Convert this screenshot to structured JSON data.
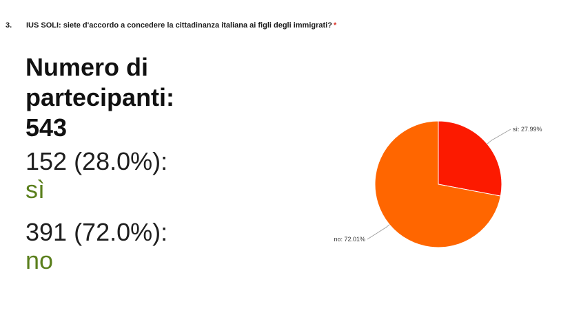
{
  "question": {
    "number": "3.",
    "text": "IUS SOLI: siete d'accordo a concedere la cittadinanza italiana ai figli degli immigrati?",
    "required_mark": "*"
  },
  "summary": {
    "participants_line1": "Numero di",
    "participants_line2": "partecipanti:",
    "participants_value": "543",
    "answers": [
      {
        "count_text": "152 (28.0%):",
        "label": "sì"
      },
      {
        "count_text": "391 (72.0%):",
        "label": "no"
      }
    ]
  },
  "colors": {
    "si": "#fc1a00",
    "no": "#ff6600",
    "answer_label": "#5a7f1c",
    "required": "#d93025"
  },
  "chart_data": {
    "type": "pie",
    "categories": [
      "sì",
      "no"
    ],
    "values": [
      27.99,
      72.01
    ],
    "labels": [
      "sì: 27.99%",
      "no: 72.01%"
    ],
    "colors": [
      "#fc1a00",
      "#ff6600"
    ]
  }
}
